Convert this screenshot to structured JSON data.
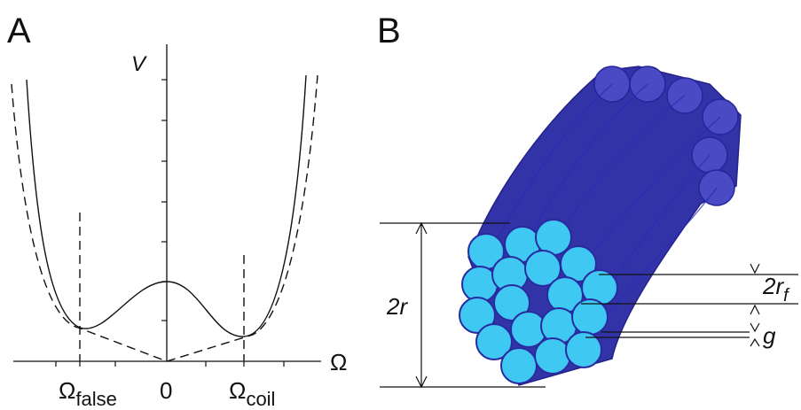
{
  "panel_a": {
    "label": "A",
    "y_axis_label": "V",
    "x_axis_label": "Ω",
    "x_labels": [
      {
        "base": "Ω",
        "sub": "false"
      },
      {
        "base": "0"
      },
      {
        "base": "Ω",
        "sub": "coil"
      }
    ]
  },
  "panel_b": {
    "label": "B",
    "dimensions": [
      {
        "base": "2r"
      },
      {
        "base": "2r",
        "sub": "f"
      },
      {
        "base": "g"
      }
    ]
  }
}
